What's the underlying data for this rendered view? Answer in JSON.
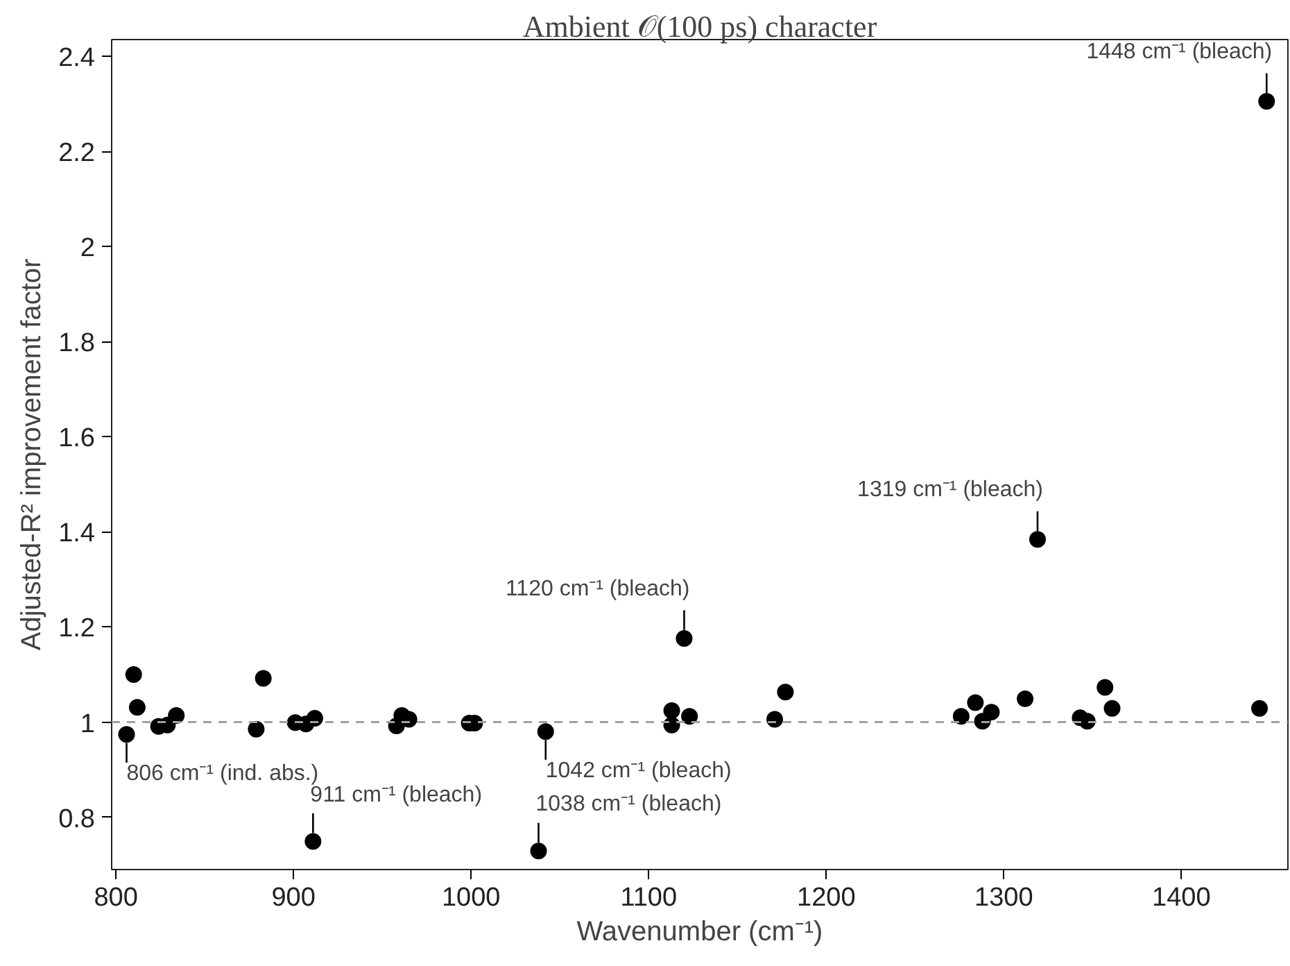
{
  "chart_data": {
    "type": "scatter",
    "title": "Ambient 𝒪(100 ps) character",
    "xlabel": "Wavenumber (cm⁻¹)",
    "ylabel": "Adjusted-R² improvement factor",
    "xlim": [
      797.6,
      1460
    ],
    "ylim": [
      0.69,
      2.435
    ],
    "xticks": [
      800,
      900,
      1000,
      1100,
      1200,
      1300,
      1400
    ],
    "yticks": [
      {
        "value": 0.8,
        "label": "0.8"
      },
      {
        "value": 1,
        "label": "1"
      },
      {
        "value": 1.2,
        "label": "1.2"
      },
      {
        "value": 1.4,
        "label": "1.4"
      },
      {
        "value": 1.6,
        "label": "1.6"
      },
      {
        "value": 1.8,
        "label": "1.8"
      },
      2,
      {
        "value": 2.2,
        "label": "2.2"
      },
      {
        "value": 2.4,
        "label": "2.4"
      }
    ],
    "grid": false,
    "marker": "circle",
    "series": [
      {
        "color": "#000000",
        "x": [
          806,
          810,
          812,
          824,
          829,
          834,
          879,
          883,
          901,
          907,
          912,
          911,
          958,
          961,
          965,
          999,
          1002,
          1042,
          1038,
          1113,
          1113,
          1120,
          1123,
          1171,
          1177,
          1276,
          1284,
          1288,
          1293,
          1312,
          1319,
          1343,
          1347,
          1357,
          1361,
          1444,
          1448
        ],
        "values": [
          0.974,
          1.1,
          1.031,
          0.991,
          0.994,
          1.014,
          0.985,
          1.092,
          0.999,
          0.996,
          1.008,
          0.749,
          0.992,
          1.014,
          1.006,
          0.998,
          0.998,
          0.98,
          0.729,
          1.024,
          0.994,
          1.176,
          1.012,
          1.006,
          1.063,
          1.012,
          1.041,
          1.002,
          1.021,
          1.049,
          1.384,
          1.009,
          1.002,
          1.073,
          1.029,
          1.029,
          2.305
        ]
      }
    ],
    "ref_lines": [
      {
        "axis": "y",
        "value": 1,
        "color": "#a0a0a0",
        "line_style": "dashed"
      }
    ],
    "annotations": [
      {
        "text": "806 cm⁻¹ (ind. abs.)",
        "x": 806,
        "y": 0.974
      },
      {
        "text": "911 cm⁻¹ (bleach)",
        "x": 911,
        "y": 0.749
      },
      {
        "text": "1038 cm⁻¹ (bleach)",
        "x": 1038,
        "y": 0.729
      },
      {
        "text": "1042 cm⁻¹ (bleach)",
        "x": 1042,
        "y": 0.98
      },
      {
        "text": "1120 cm⁻¹ (bleach)",
        "x": 1120,
        "y": 1.176
      },
      {
        "text": "1319 cm⁻¹ (bleach)",
        "x": 1319,
        "y": 1.384
      },
      {
        "text": "1448 cm⁻¹ (bleach)",
        "x": 1448,
        "y": 2.305
      }
    ]
  }
}
